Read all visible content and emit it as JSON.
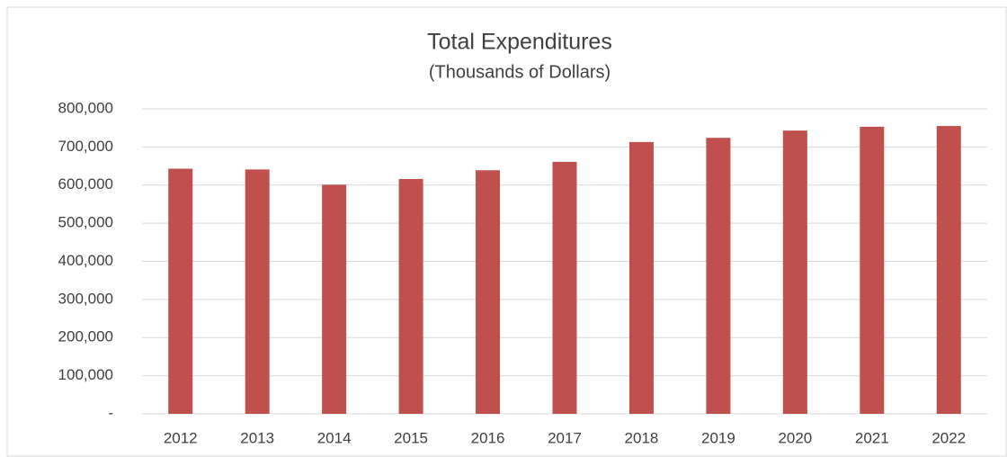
{
  "chart_data": {
    "type": "bar",
    "title": "Total Expenditures",
    "subtitle": "(Thousands of Dollars)",
    "categories": [
      "2012",
      "2013",
      "2014",
      "2015",
      "2016",
      "2017",
      "2018",
      "2019",
      "2020",
      "2021",
      "2022"
    ],
    "values": [
      643000,
      641000,
      601000,
      616000,
      639000,
      661000,
      713000,
      724000,
      743000,
      753000,
      755000
    ],
    "color": "#c0504d",
    "ylim": [
      0,
      800000
    ],
    "yticks": [
      {
        "value": 0,
        "label": "-"
      },
      {
        "value": 100000,
        "label": "100,000"
      },
      {
        "value": 200000,
        "label": "200,000"
      },
      {
        "value": 300000,
        "label": "300,000"
      },
      {
        "value": 400000,
        "label": "400,000"
      },
      {
        "value": 500000,
        "label": "500,000"
      },
      {
        "value": 600000,
        "label": "600,000"
      },
      {
        "value": 700000,
        "label": "700,000"
      },
      {
        "value": 800000,
        "label": "800,000"
      }
    ],
    "grid": true
  }
}
